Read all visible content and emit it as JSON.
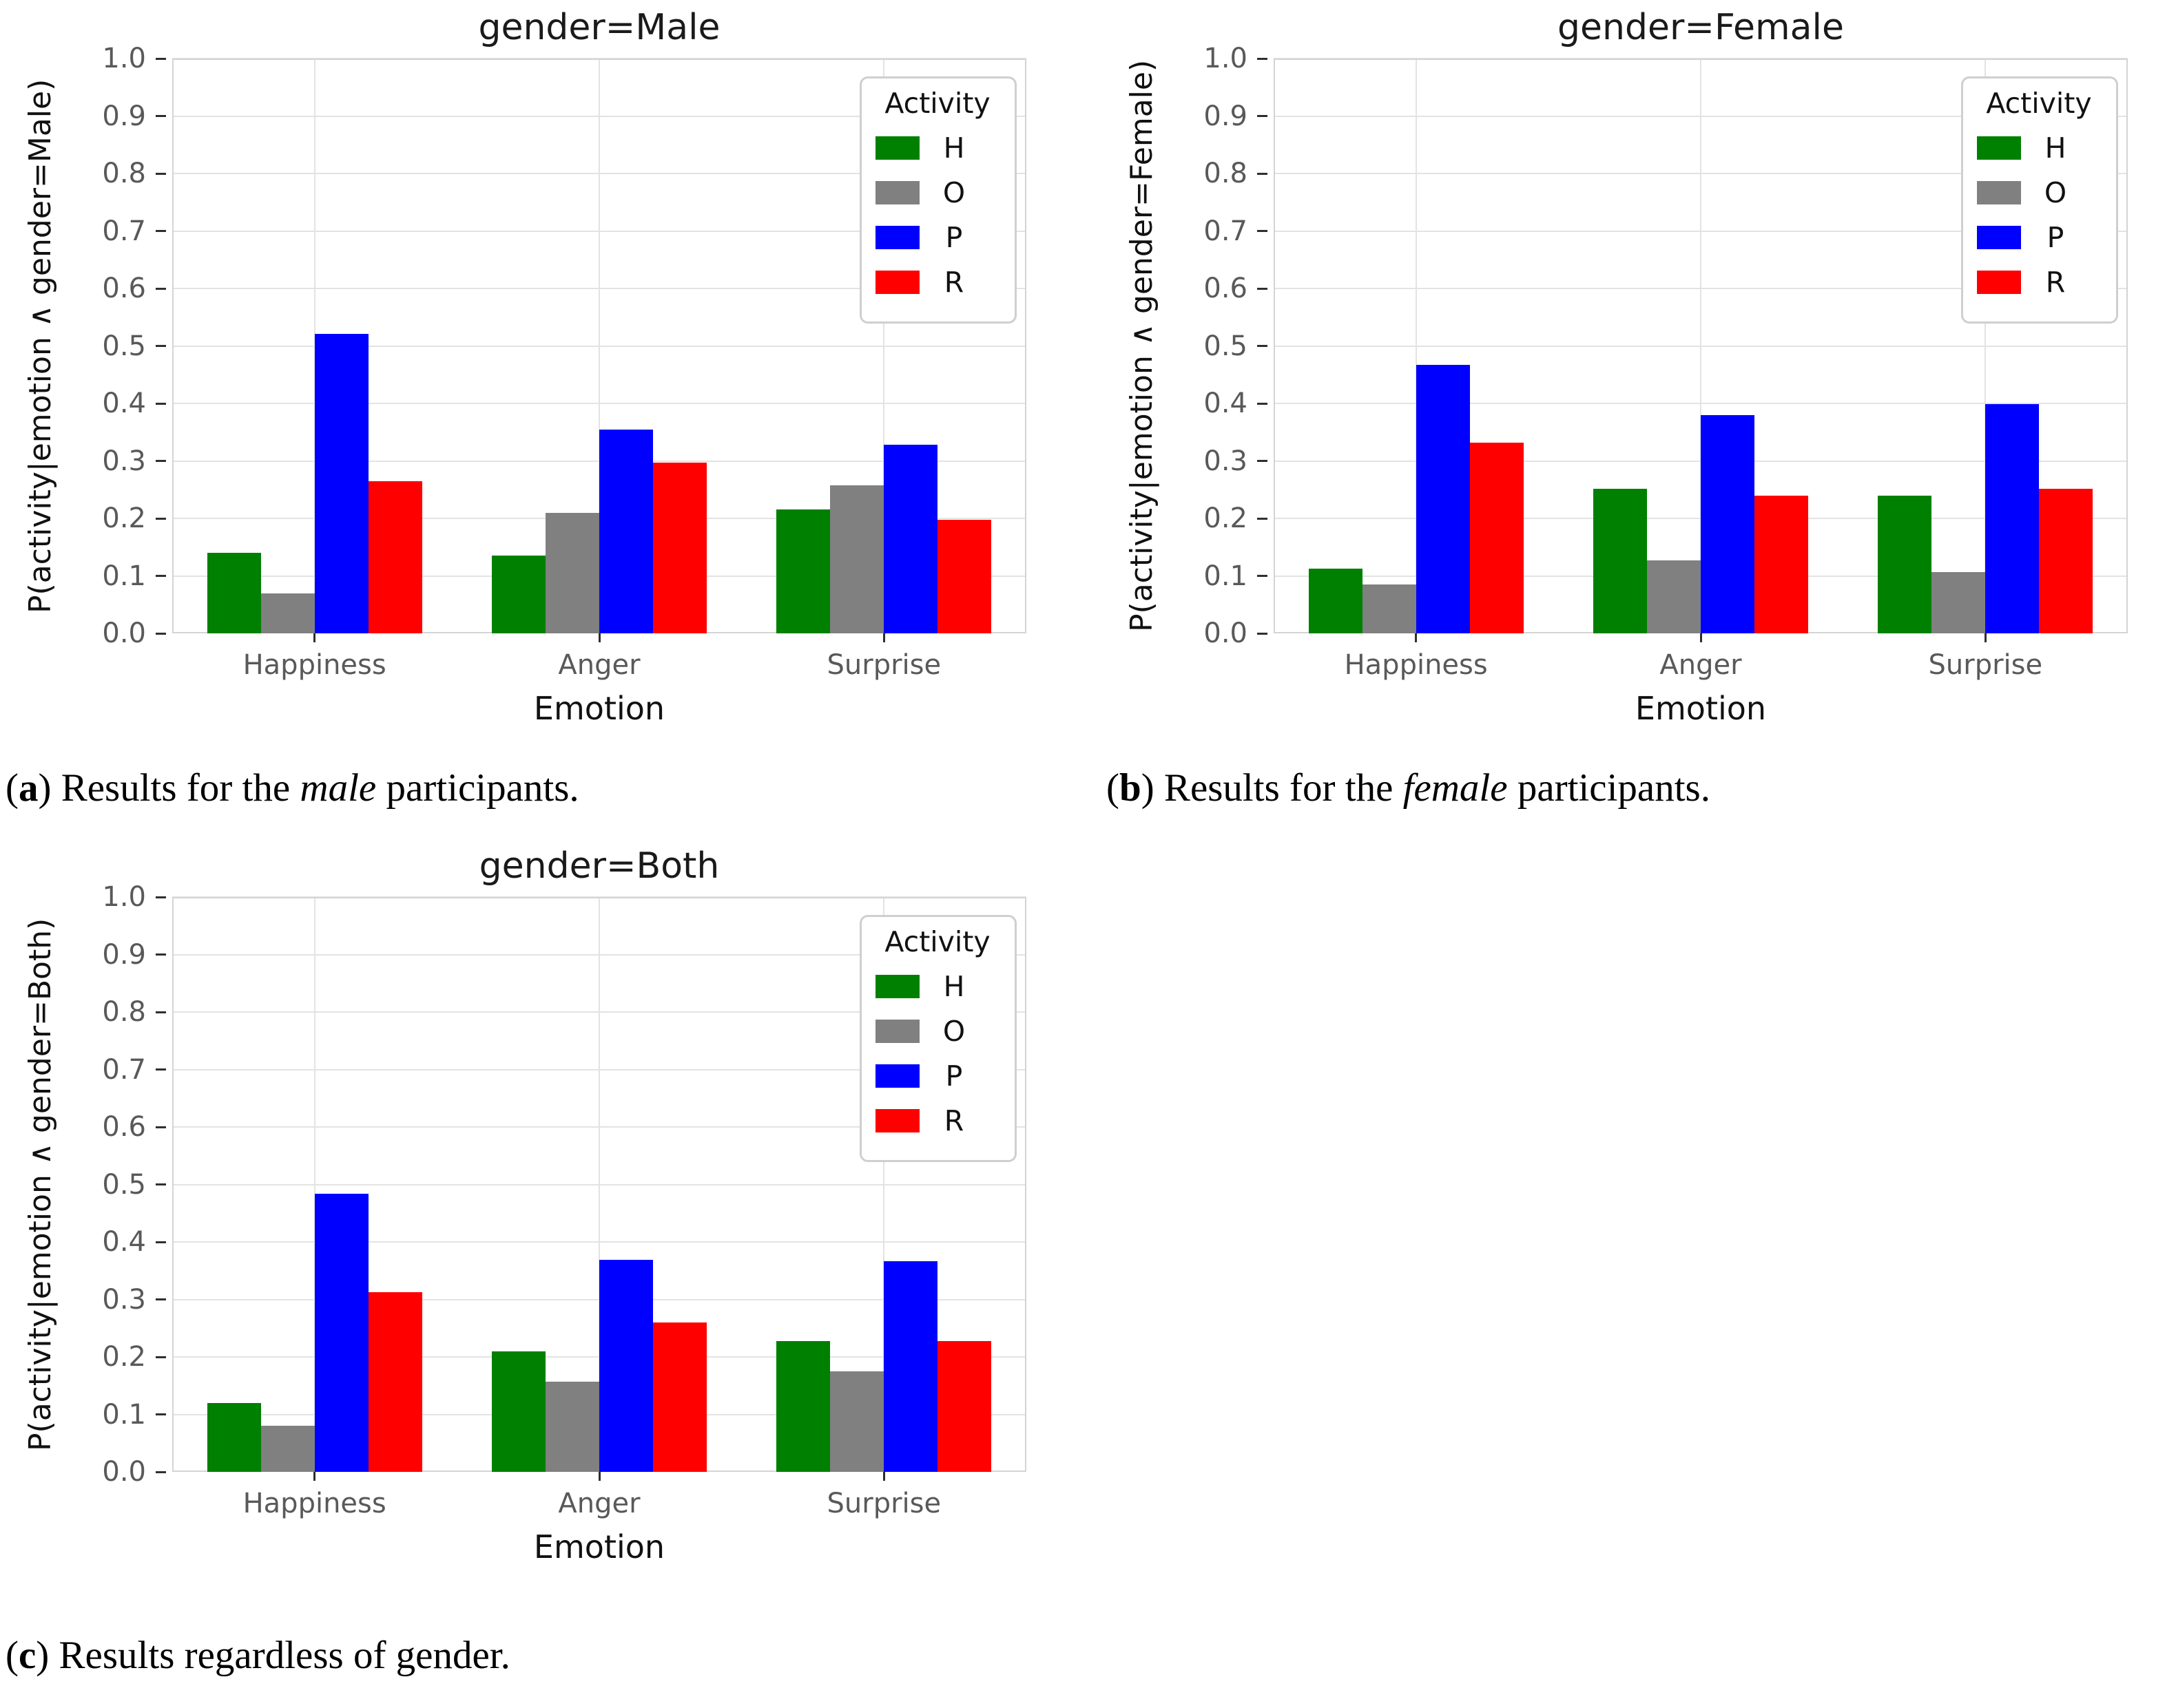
{
  "figure": {
    "background": "#ffffff",
    "font_color": "#111111",
    "tick_label_color": "#595959",
    "grid_color": "#e3e3e3",
    "frame_color": "#d4d4d4"
  },
  "captions": [
    {
      "id": "a",
      "segments": [
        {
          "text": "("
        },
        {
          "text": "a",
          "bold": true
        },
        {
          "text": ") Results for the "
        },
        {
          "text": "male",
          "italic": true
        },
        {
          "text": " participants."
        }
      ]
    },
    {
      "id": "b",
      "segments": [
        {
          "text": "("
        },
        {
          "text": "b",
          "bold": true
        },
        {
          "text": ") Results for the "
        },
        {
          "text": "female",
          "italic": true
        },
        {
          "text": " participants."
        }
      ]
    },
    {
      "id": "c",
      "segments": [
        {
          "text": "("
        },
        {
          "text": "c",
          "bold": true
        },
        {
          "text": ") Results regardless of gender."
        }
      ]
    }
  ],
  "chart_data": [
    {
      "type": "bar",
      "title": "gender=Male",
      "xlabel": "Emotion",
      "ylabel": "P(activity|emotion ∧ gender=Male)",
      "categories": [
        "Happiness",
        "Anger",
        "Surprise"
      ],
      "series": [
        {
          "name": "H",
          "color": "#008000",
          "values": [
            0.14,
            0.135,
            0.215
          ]
        },
        {
          "name": "O",
          "color": "#808080",
          "values": [
            0.07,
            0.21,
            0.258
          ]
        },
        {
          "name": "P",
          "color": "#0000ff",
          "values": [
            0.521,
            0.354,
            0.328
          ]
        },
        {
          "name": "R",
          "color": "#ff0000",
          "values": [
            0.265,
            0.297,
            0.198
          ]
        }
      ],
      "ylim": [
        0.0,
        1.0
      ],
      "yticks": [
        "0.0",
        "0.1",
        "0.2",
        "0.3",
        "0.4",
        "0.5",
        "0.6",
        "0.7",
        "0.8",
        "0.9",
        "1.0"
      ],
      "legend_title": "Activity",
      "legend_position": "upper right",
      "grid": true
    },
    {
      "type": "bar",
      "title": "gender=Female",
      "xlabel": "Emotion",
      "ylabel": "P(activity|emotion ∧ gender=Female)",
      "categories": [
        "Happiness",
        "Anger",
        "Surprise"
      ],
      "series": [
        {
          "name": "H",
          "color": "#008000",
          "values": [
            0.112,
            0.251,
            0.239
          ]
        },
        {
          "name": "O",
          "color": "#808080",
          "values": [
            0.085,
            0.127,
            0.106
          ]
        },
        {
          "name": "P",
          "color": "#0000ff",
          "values": [
            0.467,
            0.38,
            0.399
          ]
        },
        {
          "name": "R",
          "color": "#ff0000",
          "values": [
            0.332,
            0.239,
            0.252
          ]
        }
      ],
      "ylim": [
        0.0,
        1.0
      ],
      "yticks": [
        "0.0",
        "0.1",
        "0.2",
        "0.3",
        "0.4",
        "0.5",
        "0.6",
        "0.7",
        "0.8",
        "0.9",
        "1.0"
      ],
      "legend_title": "Activity",
      "legend_position": "upper right",
      "grid": true
    },
    {
      "type": "bar",
      "title": "gender=Both",
      "xlabel": "Emotion",
      "ylabel": "P(activity|emotion ∧ gender=Both)",
      "categories": [
        "Happiness",
        "Anger",
        "Surprise"
      ],
      "series": [
        {
          "name": "H",
          "color": "#008000",
          "values": [
            0.12,
            0.209,
            0.227
          ]
        },
        {
          "name": "O",
          "color": "#808080",
          "values": [
            0.08,
            0.157,
            0.175
          ]
        },
        {
          "name": "P",
          "color": "#0000ff",
          "values": [
            0.484,
            0.369,
            0.366
          ]
        },
        {
          "name": "R",
          "color": "#ff0000",
          "values": [
            0.312,
            0.26,
            0.227
          ]
        }
      ],
      "ylim": [
        0.0,
        1.0
      ],
      "yticks": [
        "0.0",
        "0.1",
        "0.2",
        "0.3",
        "0.4",
        "0.5",
        "0.6",
        "0.7",
        "0.8",
        "0.9",
        "1.0"
      ],
      "legend_title": "Activity",
      "legend_position": "upper right",
      "grid": true
    }
  ]
}
